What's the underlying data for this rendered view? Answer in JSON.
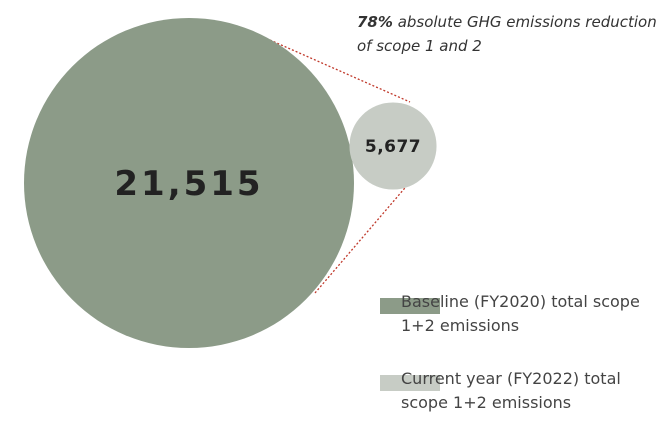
{
  "chart_data": {
    "type": "bubble",
    "annotation": {
      "emphasis": "78%",
      "text": "absolute GHG emissions reduction of scope 1 and 2"
    },
    "series": [
      {
        "name": "Baseline (FY2020) total scope 1+2 emissions",
        "color": "#8c9b88",
        "values": [
          21515
        ],
        "value_labels": [
          "21,515"
        ]
      },
      {
        "name": "Current year (FY2022) total scope 1+2 emissions",
        "color": "#c7ccc5",
        "values": [
          5677
        ],
        "value_labels": [
          "5,677"
        ]
      }
    ]
  }
}
